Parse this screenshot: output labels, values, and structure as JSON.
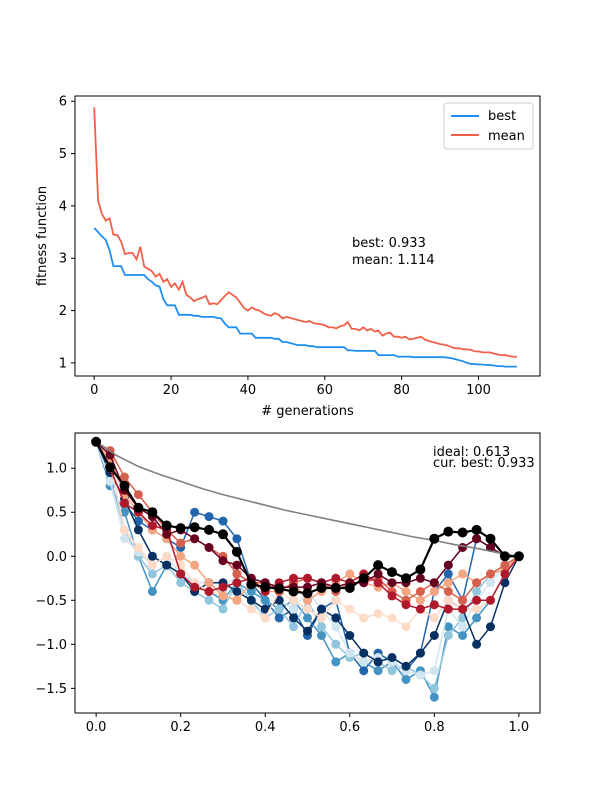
{
  "chart_data": [
    {
      "type": "line",
      "title": "",
      "xlabel": "# generations",
      "ylabel": "fitness function",
      "xlim": [
        -5,
        116
      ],
      "ylim": [
        0.75,
        6.1
      ],
      "xticks": [
        0,
        20,
        40,
        60,
        80,
        100
      ],
      "yticks": [
        1,
        2,
        3,
        4,
        5,
        6
      ],
      "grid": false,
      "legend_position": "top-right",
      "annotation": [
        "best: 0.933",
        "mean: 1.114"
      ],
      "series": [
        {
          "name": "best",
          "color": "#1f8ef1",
          "x": [
            0,
            1,
            2,
            3,
            4,
            5,
            6,
            7,
            8,
            9,
            10,
            11,
            12,
            13,
            14,
            15,
            16,
            17,
            18,
            19,
            20,
            21,
            22,
            23,
            24,
            25,
            26,
            27,
            28,
            29,
            30,
            31,
            32,
            33,
            34,
            35,
            36,
            37,
            38,
            39,
            40,
            41,
            42,
            43,
            44,
            45,
            46,
            47,
            48,
            49,
            50,
            51,
            52,
            53,
            54,
            55,
            56,
            57,
            58,
            59,
            60,
            61,
            62,
            63,
            64,
            65,
            66,
            67,
            68,
            69,
            70,
            71,
            72,
            73,
            74,
            75,
            76,
            77,
            78,
            79,
            80,
            81,
            82,
            83,
            84,
            85,
            86,
            87,
            88,
            89,
            90,
            91,
            92,
            93,
            94,
            95,
            96,
            97,
            98,
            99,
            100,
            101,
            102,
            103,
            104,
            105,
            106,
            107,
            108,
            109,
            110
          ],
          "values": [
            3.58,
            3.5,
            3.42,
            3.35,
            3.15,
            2.85,
            2.85,
            2.85,
            2.68,
            2.68,
            2.68,
            2.68,
            2.68,
            2.68,
            2.6,
            2.55,
            2.48,
            2.46,
            2.22,
            2.1,
            2.1,
            2.1,
            1.92,
            1.92,
            1.92,
            1.92,
            1.9,
            1.9,
            1.88,
            1.88,
            1.88,
            1.88,
            1.86,
            1.85,
            1.75,
            1.68,
            1.68,
            1.68,
            1.56,
            1.56,
            1.56,
            1.56,
            1.48,
            1.48,
            1.48,
            1.48,
            1.48,
            1.46,
            1.46,
            1.4,
            1.4,
            1.38,
            1.36,
            1.34,
            1.34,
            1.34,
            1.32,
            1.32,
            1.3,
            1.3,
            1.3,
            1.3,
            1.3,
            1.3,
            1.3,
            1.3,
            1.24,
            1.24,
            1.23,
            1.23,
            1.23,
            1.23,
            1.23,
            1.23,
            1.15,
            1.15,
            1.15,
            1.15,
            1.15,
            1.12,
            1.12,
            1.12,
            1.12,
            1.11,
            1.11,
            1.11,
            1.11,
            1.11,
            1.11,
            1.11,
            1.11,
            1.11,
            1.1,
            1.09,
            1.07,
            1.05,
            1.03,
            1.0,
            0.98,
            0.98,
            0.97,
            0.97,
            0.96,
            0.96,
            0.95,
            0.94,
            0.94,
            0.93,
            0.93,
            0.93,
            0.93
          ]
        },
        {
          "name": "mean",
          "color": "#f2604a",
          "x": [
            0,
            1,
            2,
            3,
            4,
            5,
            6,
            7,
            8,
            9,
            10,
            11,
            12,
            13,
            14,
            15,
            16,
            17,
            18,
            19,
            20,
            21,
            22,
            23,
            24,
            25,
            26,
            27,
            28,
            29,
            30,
            31,
            32,
            33,
            34,
            35,
            36,
            37,
            38,
            39,
            40,
            41,
            42,
            43,
            44,
            45,
            46,
            47,
            48,
            49,
            50,
            51,
            52,
            53,
            54,
            55,
            56,
            57,
            58,
            59,
            60,
            61,
            62,
            63,
            64,
            65,
            66,
            67,
            68,
            69,
            70,
            71,
            72,
            73,
            74,
            75,
            76,
            77,
            78,
            79,
            80,
            81,
            82,
            83,
            84,
            85,
            86,
            87,
            88,
            89,
            90,
            91,
            92,
            93,
            94,
            95,
            96,
            97,
            98,
            99,
            100,
            101,
            102,
            103,
            104,
            105,
            106,
            107,
            108,
            109,
            110
          ],
          "values": [
            5.88,
            4.1,
            3.85,
            3.72,
            3.76,
            3.45,
            3.44,
            3.32,
            3.08,
            3.1,
            3.1,
            2.98,
            3.22,
            2.84,
            2.8,
            2.75,
            2.65,
            2.7,
            2.55,
            2.6,
            2.45,
            2.52,
            2.4,
            2.55,
            2.3,
            2.25,
            2.18,
            2.22,
            2.24,
            2.28,
            2.12,
            2.14,
            2.12,
            2.2,
            2.28,
            2.35,
            2.3,
            2.25,
            2.15,
            2.05,
            2.0,
            2.06,
            2.02,
            2.0,
            1.95,
            1.92,
            1.9,
            1.95,
            1.92,
            1.85,
            1.88,
            1.86,
            1.84,
            1.82,
            1.8,
            1.78,
            1.8,
            1.76,
            1.75,
            1.74,
            1.72,
            1.68,
            1.68,
            1.66,
            1.7,
            1.72,
            1.78,
            1.65,
            1.65,
            1.62,
            1.68,
            1.62,
            1.65,
            1.6,
            1.62,
            1.52,
            1.56,
            1.58,
            1.5,
            1.5,
            1.48,
            1.5,
            1.45,
            1.46,
            1.48,
            1.5,
            1.45,
            1.42,
            1.4,
            1.38,
            1.36,
            1.35,
            1.33,
            1.3,
            1.28,
            1.28,
            1.26,
            1.26,
            1.25,
            1.22,
            1.22,
            1.2,
            1.2,
            1.2,
            1.18,
            1.16,
            1.15,
            1.15,
            1.13,
            1.12,
            1.114
          ]
        }
      ]
    },
    {
      "type": "line",
      "title": "",
      "xlabel": "",
      "ylabel": "",
      "xlim": [
        -0.05,
        1.05
      ],
      "ylim": [
        -1.78,
        1.4
      ],
      "xticks": [
        0.0,
        0.2,
        0.4,
        0.6,
        0.8,
        1.0
      ],
      "yticks": [
        -1.5,
        -1.0,
        -0.5,
        0.0,
        0.5,
        1.0
      ],
      "grid": false,
      "annotation": [
        "ideal: 0.613",
        "cur. best: 0.933"
      ],
      "ideal_curve": {
        "color": "#808080",
        "x": [
          0,
          0.05,
          0.1,
          0.15,
          0.2,
          0.25,
          0.3,
          0.35,
          0.4,
          0.45,
          0.5,
          0.55,
          0.6,
          0.65,
          0.7,
          0.75,
          0.8,
          0.85,
          0.9,
          0.95,
          1.0
        ],
        "values": [
          1.3,
          1.14,
          1.02,
          0.93,
          0.85,
          0.77,
          0.7,
          0.64,
          0.58,
          0.52,
          0.47,
          0.42,
          0.37,
          0.32,
          0.27,
          0.22,
          0.18,
          0.13,
          0.09,
          0.04,
          0.0
        ]
      },
      "best_curve": {
        "color": "#000000",
        "x": [
          0.0,
          0.033,
          0.067,
          0.1,
          0.133,
          0.167,
          0.2,
          0.233,
          0.267,
          0.3,
          0.333,
          0.367,
          0.4,
          0.433,
          0.467,
          0.5,
          0.533,
          0.567,
          0.6,
          0.633,
          0.667,
          0.7,
          0.733,
          0.767,
          0.8,
          0.833,
          0.867,
          0.9,
          0.933,
          0.967,
          1.0
        ],
        "values": [
          1.3,
          1.01,
          0.8,
          0.55,
          0.5,
          0.35,
          0.32,
          0.33,
          0.3,
          0.25,
          0.05,
          -0.32,
          -0.35,
          -0.37,
          -0.4,
          -0.42,
          -0.36,
          -0.36,
          -0.36,
          -0.25,
          -0.1,
          -0.18,
          -0.25,
          -0.15,
          0.2,
          0.28,
          0.27,
          0.3,
          0.2,
          0.0,
          0.0
        ]
      },
      "population": [
        {
          "color": "#2166ac",
          "values": [
            1.3,
            1.0,
            0.6,
            0.4,
            0.3,
            0.2,
            0.1,
            0.5,
            0.45,
            0.4,
            0.2,
            -0.3,
            -0.5,
            -0.7,
            -0.6,
            -0.9,
            -0.6,
            -0.5,
            -1.1,
            -1.3,
            -1.1,
            -1.2,
            -1.3,
            -1.1,
            -0.4,
            -0.2,
            -0.5,
            0.2,
            0.1,
            0.0,
            0.0
          ]
        },
        {
          "color": "#4393c3",
          "values": [
            1.3,
            0.8,
            0.5,
            0.0,
            -0.4,
            -0.1,
            -0.2,
            -0.3,
            -0.4,
            -0.5,
            -0.3,
            -0.4,
            -0.5,
            -0.6,
            -0.5,
            -0.7,
            -0.9,
            -1.2,
            -1.1,
            -1.2,
            -1.3,
            -1.2,
            -1.4,
            -1.3,
            -1.6,
            -0.8,
            -0.9,
            -0.7,
            -0.5,
            -0.2,
            0.0
          ]
        },
        {
          "color": "#92c5de",
          "values": [
            1.3,
            0.9,
            0.3,
            0.0,
            -0.2,
            -0.1,
            -0.3,
            -0.4,
            -0.5,
            -0.6,
            -0.3,
            -0.5,
            -0.7,
            -0.6,
            -0.8,
            -0.5,
            -0.8,
            -1.0,
            -1.15,
            -1.1,
            -1.2,
            -1.3,
            -1.25,
            -1.35,
            -1.5,
            -0.9,
            -0.7,
            -0.4,
            -0.2,
            -0.1,
            0.0
          ]
        },
        {
          "color": "#d1e5f0",
          "values": [
            1.3,
            0.85,
            0.2,
            0.05,
            -0.1,
            0.0,
            -0.2,
            -0.3,
            -0.3,
            -0.4,
            -0.2,
            -0.3,
            -0.4,
            -0.5,
            -0.6,
            -0.4,
            -0.6,
            -0.8,
            -1.1,
            -1.2,
            -1.15,
            -1.2,
            -1.3,
            -1.35,
            -1.3,
            -0.6,
            -0.8,
            -0.5,
            -0.3,
            -0.1,
            0.0
          ]
        },
        {
          "color": "#053061",
          "values": [
            1.3,
            0.95,
            0.65,
            0.3,
            0.0,
            -0.1,
            -0.2,
            -0.4,
            -0.3,
            -0.3,
            -0.4,
            -0.5,
            -0.6,
            -0.5,
            -0.7,
            -0.85,
            -0.6,
            -0.7,
            -0.9,
            -1.1,
            -1.2,
            -1.15,
            -1.25,
            -1.1,
            -0.9,
            -0.5,
            -0.6,
            -1.0,
            -0.8,
            -0.3,
            0.0
          ]
        },
        {
          "color": "#fddbc7",
          "values": [
            1.3,
            1.05,
            0.3,
            0.1,
            -0.1,
            0.0,
            -0.1,
            -0.3,
            -0.4,
            -0.45,
            -0.5,
            -0.6,
            -0.7,
            -0.4,
            -0.5,
            -0.6,
            -0.7,
            -0.5,
            -0.6,
            -0.7,
            -0.65,
            -0.7,
            -0.8,
            -0.6,
            -0.7,
            -0.5,
            -0.6,
            -0.6,
            -0.5,
            -0.2,
            0.0
          ]
        },
        {
          "color": "#f4a582",
          "values": [
            1.3,
            1.1,
            0.7,
            0.5,
            0.3,
            0.2,
            0.0,
            -0.1,
            -0.3,
            -0.45,
            -0.5,
            -0.3,
            -0.4,
            -0.4,
            -0.3,
            -0.5,
            -0.4,
            -0.3,
            -0.2,
            -0.3,
            -0.35,
            -0.3,
            -0.4,
            -0.5,
            -0.4,
            -0.3,
            -0.2,
            -0.3,
            -0.2,
            -0.15,
            0.0
          ]
        },
        {
          "color": "#d6604d",
          "values": [
            1.3,
            1.2,
            0.9,
            0.7,
            0.5,
            0.3,
            0.15,
            0.2,
            0.1,
            0.0,
            -0.2,
            -0.3,
            -0.3,
            -0.4,
            -0.3,
            -0.25,
            -0.3,
            -0.4,
            -0.3,
            -0.3,
            -0.25,
            -0.4,
            -0.5,
            -0.4,
            -0.3,
            -0.4,
            -0.5,
            -0.3,
            -0.2,
            -0.1,
            0.0
          ]
        },
        {
          "color": "#b2182b",
          "values": [
            1.3,
            1.0,
            0.6,
            0.5,
            0.35,
            0.3,
            -0.2,
            -0.35,
            -0.4,
            -0.35,
            -0.3,
            -0.25,
            -0.4,
            -0.3,
            -0.25,
            -0.25,
            -0.3,
            -0.25,
            -0.3,
            -0.2,
            -0.3,
            -0.45,
            -0.55,
            -0.6,
            -0.55,
            -0.6,
            -0.6,
            -0.5,
            -0.5,
            -0.2,
            0.0
          ]
        },
        {
          "color": "#67001f",
          "values": [
            1.3,
            1.15,
            0.75,
            0.55,
            0.45,
            0.25,
            0.3,
            0.2,
            0.1,
            -0.05,
            -0.1,
            -0.25,
            -0.3,
            -0.35,
            -0.35,
            -0.35,
            -0.3,
            -0.35,
            -0.3,
            -0.3,
            -0.2,
            -0.3,
            -0.3,
            -0.25,
            -0.3,
            -0.1,
            0.1,
            0.2,
            0.1,
            0.0,
            0.0
          ]
        }
      ]
    }
  ]
}
